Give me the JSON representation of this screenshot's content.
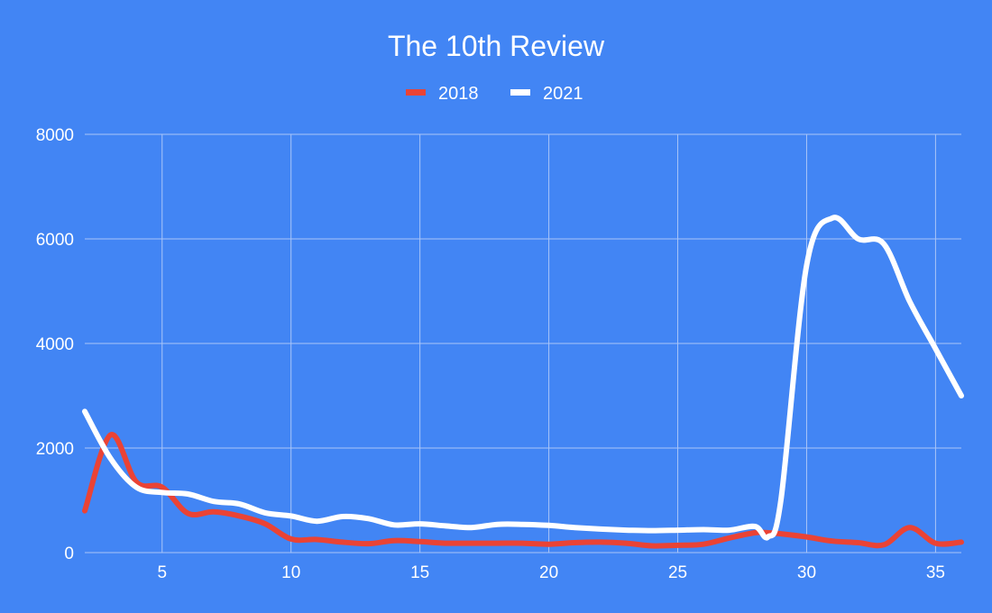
{
  "chart_data": {
    "type": "line",
    "title": "The 10th Review",
    "xlabel": "",
    "ylabel": "",
    "xlim": [
      2,
      36
    ],
    "ylim": [
      0,
      8000
    ],
    "x_ticks": [
      5,
      10,
      15,
      20,
      25,
      30,
      35
    ],
    "y_ticks": [
      0,
      2000,
      4000,
      6000,
      8000
    ],
    "grid": true,
    "legend_position": "top-center",
    "x": [
      2,
      3,
      4,
      5,
      6,
      7,
      8,
      9,
      10,
      11,
      12,
      13,
      14,
      15,
      16,
      17,
      18,
      19,
      20,
      21,
      22,
      23,
      24,
      25,
      26,
      27,
      28,
      28.5,
      29,
      30,
      31,
      32,
      33,
      34,
      35,
      36
    ],
    "series": [
      {
        "name": "2018",
        "color": "#ea4335",
        "values": [
          800,
          2250,
          1350,
          1250,
          750,
          780,
          700,
          550,
          260,
          250,
          200,
          170,
          230,
          210,
          180,
          180,
          180,
          180,
          160,
          190,
          200,
          180,
          130,
          140,
          160,
          280,
          380,
          380,
          360,
          300,
          220,
          190,
          150,
          480,
          180,
          200
        ]
      },
      {
        "name": "2021",
        "color": "#ffffff",
        "values": [
          2700,
          1800,
          1250,
          1150,
          1120,
          980,
          930,
          760,
          700,
          600,
          690,
          650,
          530,
          550,
          510,
          480,
          540,
          540,
          520,
          480,
          450,
          430,
          420,
          430,
          440,
          430,
          500,
          300,
          1000,
          5500,
          6400,
          6000,
          5900,
          4800,
          3900,
          3000
        ]
      }
    ]
  }
}
